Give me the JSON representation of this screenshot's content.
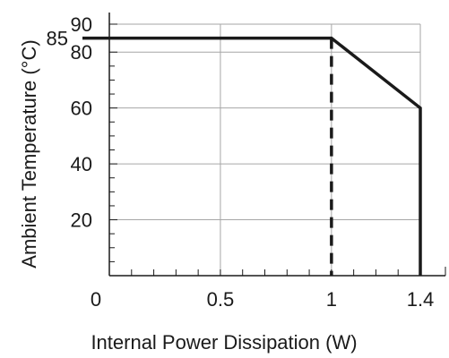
{
  "chart_data": {
    "type": "line",
    "xlabel": "Internal Power Dissipation (W)",
    "ylabel": "Ambient Temperature (°C)",
    "xlim": [
      0,
      1.4
    ],
    "ylim": [
      0,
      90
    ],
    "x_ticks": [
      {
        "value": 0,
        "label": "0"
      },
      {
        "value": 0.5,
        "label": "0.5"
      },
      {
        "value": 1,
        "label": "1"
      },
      {
        "value": 1.4,
        "label": "1.4"
      }
    ],
    "y_ticks": [
      {
        "value": 20,
        "label": "20"
      },
      {
        "value": 40,
        "label": "40"
      },
      {
        "value": 60,
        "label": "60"
      },
      {
        "value": 80,
        "label": "80"
      },
      {
        "value": 85,
        "label": "85"
      },
      {
        "value": 90,
        "label": "90"
      }
    ],
    "series": [
      {
        "points": [
          {
            "x": 0,
            "y": 85
          },
          {
            "x": 1,
            "y": 85
          },
          {
            "x": 1.4,
            "y": 60
          },
          {
            "x": 1.4,
            "y": 0
          }
        ],
        "style": "solid"
      },
      {
        "points": [
          {
            "x": 1,
            "y": 85
          },
          {
            "x": 1,
            "y": 0
          }
        ],
        "style": "dashed"
      }
    ],
    "grid": true,
    "colors": {
      "line": "#1a1a1a",
      "grid": "#a6a6a6",
      "axis": "#1a1a1a"
    }
  }
}
